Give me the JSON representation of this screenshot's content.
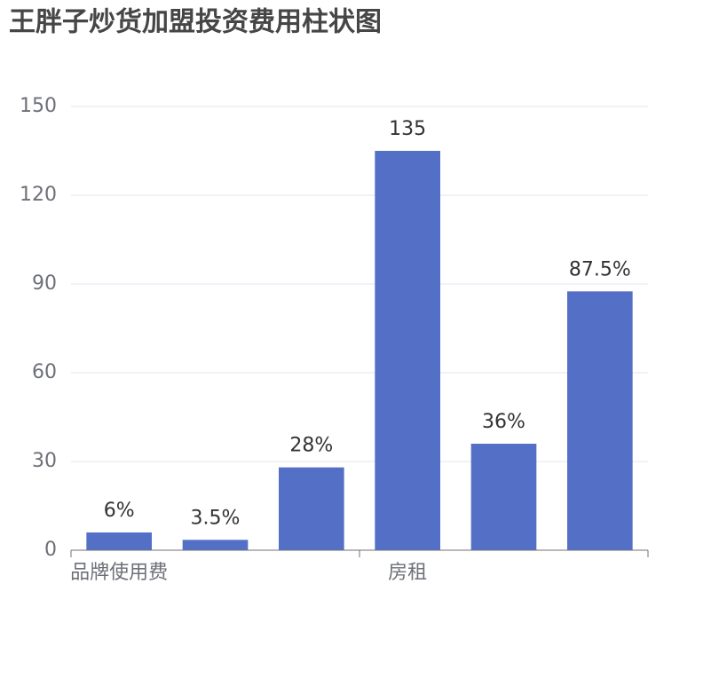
{
  "chart_data": {
    "type": "bar",
    "title": "王胖子炒货加盟投资费用柱状图",
    "categories": [
      "品牌使用费",
      null,
      null,
      "房租",
      null,
      null
    ],
    "values": [
      6,
      3.5,
      28,
      135,
      36,
      87.5
    ],
    "value_labels": [
      "6%",
      "3.5%",
      "28%",
      "135",
      "36%",
      "87.5%"
    ],
    "color": "#5470c6",
    "ylim": [
      0,
      150
    ],
    "yticks": [
      0,
      30,
      60,
      90,
      120,
      150
    ],
    "grid": true
  }
}
